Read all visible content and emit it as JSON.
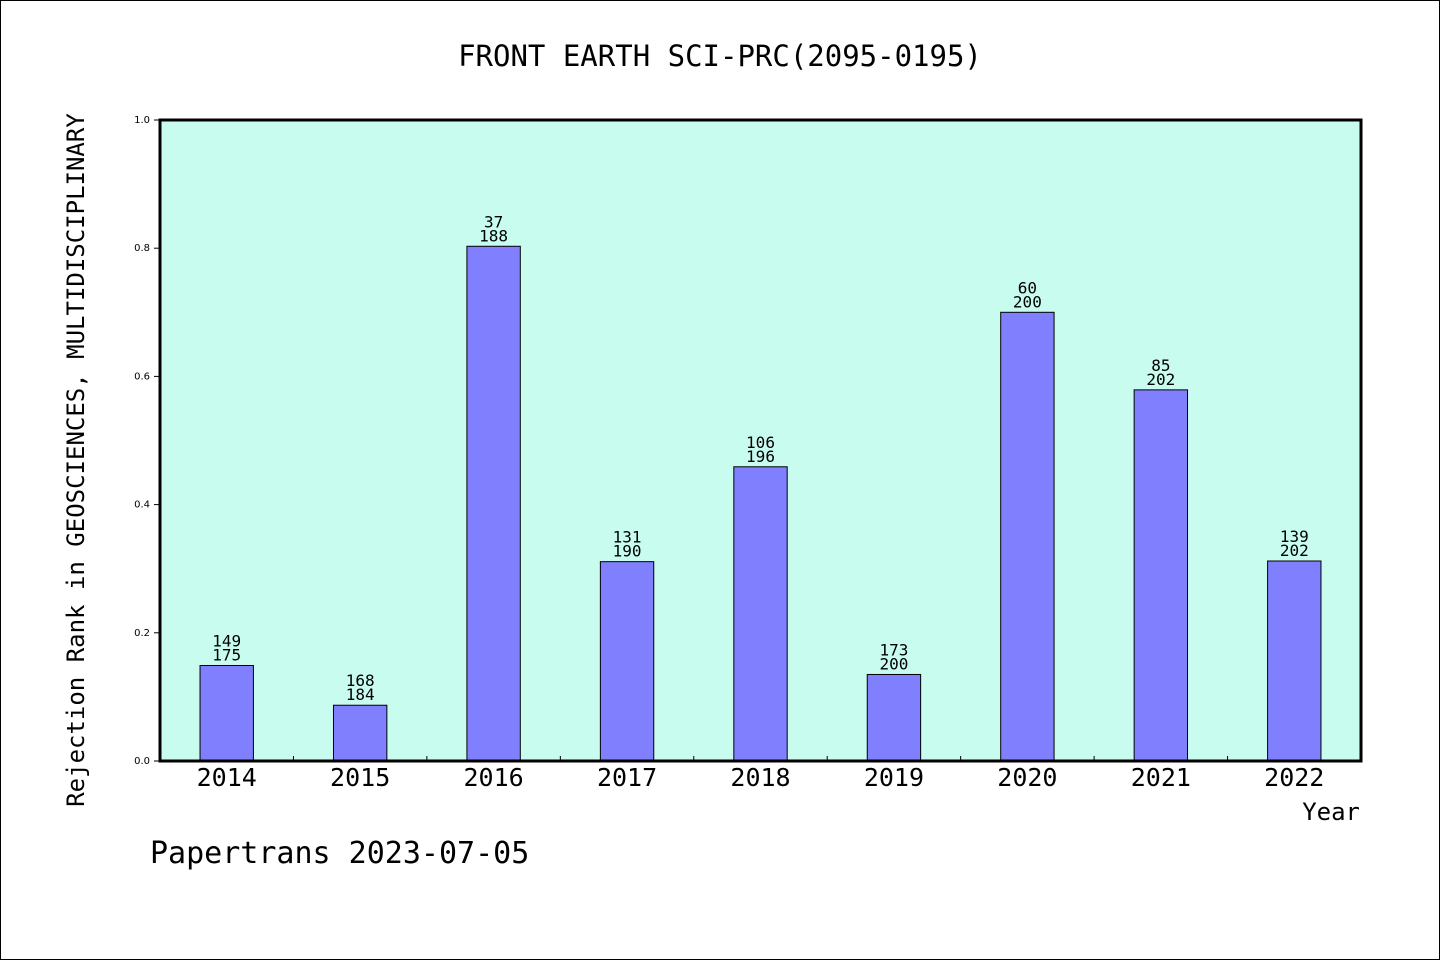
{
  "chart_data": {
    "type": "bar",
    "title": "FRONT EARTH SCI-PRC(2095-0195)",
    "xlabel": "Year",
    "ylabel": "Rejection Rank in GEOSCIENCES, MULTIDISCIPLINARY",
    "ylim": [
      0,
      1.0
    ],
    "yticks": [
      "0.0",
      "0.2",
      "0.4",
      "0.6",
      "0.8",
      "1.0"
    ],
    "categories": [
      "2014",
      "2015",
      "2016",
      "2017",
      "2018",
      "2019",
      "2020",
      "2021",
      "2022"
    ],
    "values": [
      0.149,
      0.087,
      0.803,
      0.311,
      0.459,
      0.135,
      0.7,
      0.579,
      0.312
    ],
    "labels_top": [
      "149",
      "168",
      "37",
      "131",
      "106",
      "173",
      "60",
      "85",
      "139"
    ],
    "labels_bottom": [
      "175",
      "184",
      "188",
      "190",
      "196",
      "200",
      "200",
      "202",
      "202"
    ],
    "colors": {
      "plot_background": "#c8fcef",
      "bar_fill": "#8080ff",
      "bar_stroke": "#000000"
    },
    "grid": false,
    "legend": "none"
  },
  "footer": {
    "watermark": "Papertrans 2023-07-05"
  }
}
